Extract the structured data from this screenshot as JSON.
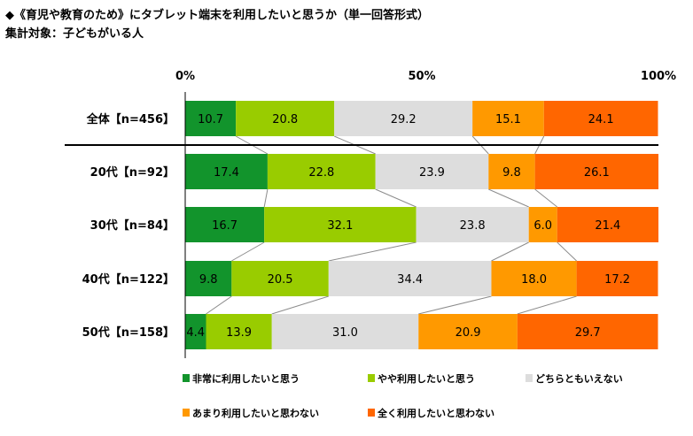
{
  "chart_data": {
    "type": "stacked-bar-horizontal",
    "title": "◆《育児や教育のため》にタブレット端末を利用したいと思うか（単一回答形式）",
    "subtitle": "集計対象：子どもがいる人",
    "xlim": [
      0,
      100
    ],
    "ticks": [
      "0%",
      "50%",
      "100%"
    ],
    "categories": [
      "全体【n=456】",
      "20代【n=92】",
      "30代【n=84】",
      "40代【n=122】",
      "50代【n=158】"
    ],
    "series": [
      {
        "name": "非常に利用したいと思う",
        "color": "#12942c",
        "values": [
          10.7,
          17.4,
          16.7,
          9.8,
          4.4
        ]
      },
      {
        "name": "やや利用したいと思う",
        "color": "#99cc00",
        "values": [
          20.8,
          22.8,
          32.1,
          20.5,
          13.9
        ]
      },
      {
        "name": "どちらともいえない",
        "color": "#dddddd",
        "values": [
          29.2,
          23.9,
          23.8,
          34.4,
          31.0
        ]
      },
      {
        "name": "あまり利用したいと思わない",
        "color": "#ff9900",
        "values": [
          15.1,
          9.8,
          6.0,
          18.0,
          20.9
        ]
      },
      {
        "name": "全く利用したいと思わない",
        "color": "#ff6600",
        "values": [
          24.1,
          26.1,
          21.4,
          17.2,
          29.7
        ]
      }
    ]
  }
}
